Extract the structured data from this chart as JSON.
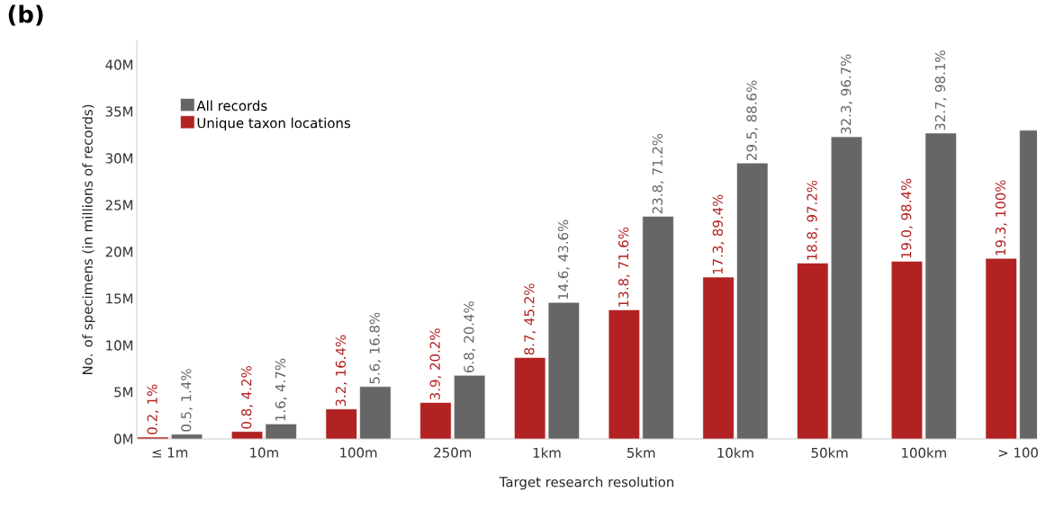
{
  "chart_data": {
    "type": "bar",
    "title": "(b)",
    "xlabel": "Target research resolution",
    "ylabel": "No. of specimens (in millions of records)",
    "categories": [
      "≤ 1m",
      "10m",
      "100m",
      "250m",
      "1km",
      "5km",
      "10km",
      "50km",
      "100km",
      "> 100"
    ],
    "series": [
      {
        "name": "All records",
        "color": "#666666",
        "values": [
          0.5,
          1.6,
          5.6,
          6.8,
          14.6,
          23.8,
          29.5,
          32.3,
          32.7,
          33.0
        ],
        "value_labels": [
          "0.5, 1.4%",
          "1.6, 4.7%",
          "5.6, 16.8%",
          "6.8, 20.4%",
          "14.6, 43.6%",
          "23.8, 71.2%",
          "29.5, 88.6%",
          "32.3, 96.7%",
          "32.7, 98.1%",
          null
        ]
      },
      {
        "name": "Unique taxon locations",
        "color": "#b22222",
        "values": [
          0.2,
          0.8,
          3.2,
          3.9,
          8.7,
          13.8,
          17.3,
          18.8,
          19.0,
          19.3
        ],
        "value_labels": [
          "0.2, 1%",
          "0.8, 4.2%",
          "3.2, 16.4%",
          "3.9, 20.2%",
          "8.7, 45.2%",
          "13.8, 71.6%",
          "17.3, 89.4%",
          "18.8, 97.2%",
          "19.0, 98.4%",
          "19.3, 100%"
        ]
      }
    ],
    "ylim": [
      0,
      42.6
    ],
    "yticks": [
      {
        "value": 0,
        "label": "0M"
      },
      {
        "value": 5,
        "label": "5M"
      },
      {
        "value": 10,
        "label": "10M"
      },
      {
        "value": 15,
        "label": "15M"
      },
      {
        "value": 20,
        "label": "20M"
      },
      {
        "value": 25,
        "label": "25M"
      },
      {
        "value": 30,
        "label": "30M"
      },
      {
        "value": 35,
        "label": "35M"
      },
      {
        "value": 40,
        "label": "40M"
      }
    ],
    "legend": "top left",
    "grid": false
  }
}
